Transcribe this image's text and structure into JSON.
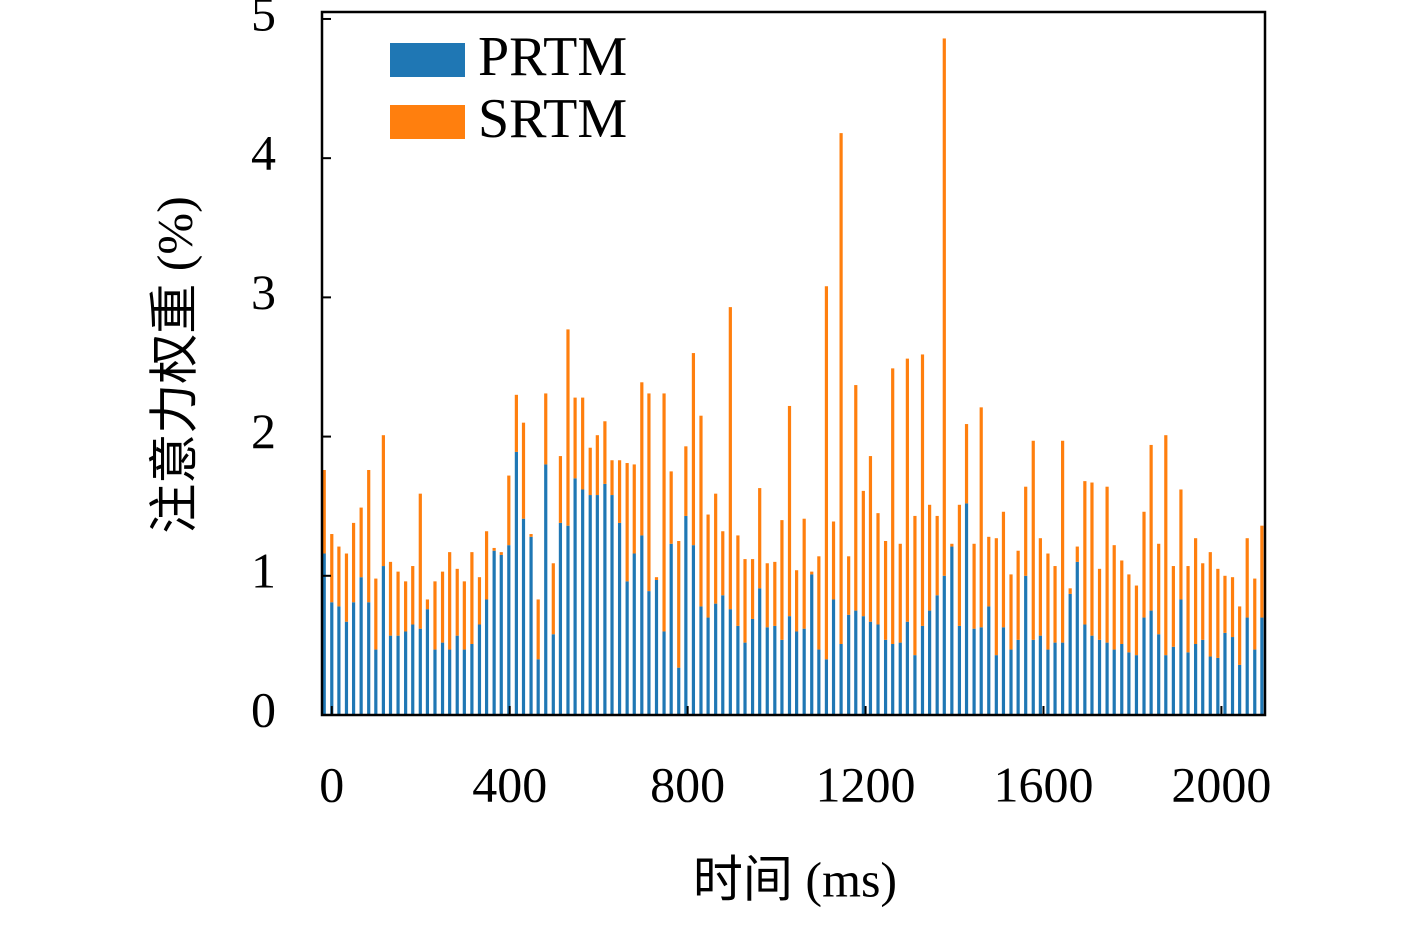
{
  "chart_data": {
    "type": "stacked_bar",
    "xlabel": "时间 (ms)",
    "ylabel": "注意力权重 (%)",
    "x": [
      -17,
      0,
      16,
      33,
      49,
      66,
      83,
      99,
      116,
      132,
      149,
      166,
      182,
      199,
      215,
      232,
      249,
      265,
      282,
      298,
      315,
      332,
      348,
      365,
      381,
      398,
      415,
      431,
      448,
      464,
      481,
      498,
      514,
      531,
      547,
      564,
      581,
      597,
      614,
      630,
      647,
      664,
      680,
      697,
      713,
      730,
      747,
      763,
      780,
      796,
      813,
      830,
      846,
      863,
      879,
      896,
      913,
      929,
      946,
      962,
      979,
      996,
      1012,
      1029,
      1045,
      1062,
      1079,
      1095,
      1112,
      1128,
      1145,
      1162,
      1178,
      1195,
      1211,
      1228,
      1245,
      1261,
      1278,
      1294,
      1311,
      1328,
      1344,
      1361,
      1377,
      1394,
      1411,
      1427,
      1444,
      1460,
      1477,
      1494,
      1510,
      1527,
      1543,
      1560,
      1577,
      1593,
      1610,
      1626,
      1643,
      1660,
      1676,
      1693,
      1709,
      1726,
      1743,
      1759,
      1776,
      1792,
      1809,
      1826,
      1842,
      1859,
      1875,
      1892,
      1909,
      1925,
      1942,
      1958,
      1975,
      1992,
      2008,
      2025,
      2041,
      2058,
      2075,
      2091
    ],
    "series": [
      {
        "name": "PRTM",
        "color": "#1f77b4",
        "values": [
          1.16,
          0.81,
          0.78,
          0.67,
          0.81,
          0.99,
          0.81,
          0.47,
          1.07,
          0.57,
          0.57,
          0.6,
          0.65,
          0.62,
          0.76,
          0.47,
          0.52,
          0.47,
          0.57,
          0.47,
          0.51,
          0.65,
          0.83,
          1.18,
          1.15,
          1.22,
          1.89,
          1.41,
          1.28,
          0.4,
          1.8,
          0.58,
          1.38,
          1.36,
          1.7,
          1.62,
          1.58,
          1.58,
          1.66,
          1.58,
          1.38,
          0.96,
          1.16,
          1.29,
          0.89,
          0.97,
          0.6,
          1.23,
          0.34,
          1.43,
          1.22,
          0.78,
          0.7,
          0.8,
          0.86,
          0.76,
          0.64,
          0.52,
          0.69,
          0.91,
          0.63,
          0.64,
          0.54,
          0.71,
          0.6,
          0.62,
          1.01,
          0.47,
          0.4,
          0.83,
          0.51,
          0.72,
          0.75,
          0.71,
          0.67,
          0.65,
          0.54,
          0.51,
          0.52,
          0.67,
          0.43,
          0.64,
          0.75,
          0.86,
          1.0,
          1.21,
          0.64,
          1.52,
          0.62,
          0.63,
          0.78,
          0.43,
          0.63,
          0.47,
          0.54,
          1.0,
          0.54,
          0.57,
          0.47,
          0.52,
          0.52,
          0.87,
          1.1,
          0.65,
          0.57,
          0.54,
          0.52,
          0.47,
          0.51,
          0.45,
          0.43,
          0.7,
          0.75,
          0.58,
          0.43,
          0.49,
          0.83,
          0.45,
          0.51,
          0.54,
          0.42,
          0.41,
          0.59,
          0.56,
          0.36,
          0.7,
          0.47,
          0.7
        ]
      },
      {
        "name": "SRTM",
        "color": "#ff7f0e",
        "values": [
          0.6,
          0.49,
          0.43,
          0.49,
          0.57,
          0.5,
          0.95,
          0.51,
          0.94,
          0.53,
          0.46,
          0.36,
          0.42,
          0.97,
          0.07,
          0.49,
          0.51,
          0.7,
          0.48,
          0.49,
          0.66,
          0.34,
          0.49,
          0.02,
          0.02,
          0.5,
          0.41,
          0.69,
          0.02,
          0.43,
          0.51,
          0.51,
          0.48,
          1.41,
          0.58,
          0.66,
          0.34,
          0.43,
          0.45,
          0.25,
          0.45,
          0.85,
          0.64,
          1.1,
          1.42,
          0.02,
          1.71,
          0.52,
          0.91,
          0.5,
          1.38,
          1.37,
          0.74,
          0.79,
          0.46,
          2.17,
          0.65,
          0.6,
          0.43,
          0.72,
          0.46,
          0.46,
          0.86,
          1.51,
          0.44,
          0.79,
          0.02,
          0.67,
          2.68,
          0.56,
          3.67,
          0.42,
          1.62,
          0.9,
          1.19,
          0.8,
          0.71,
          1.98,
          0.71,
          1.89,
          1.0,
          1.95,
          0.76,
          0.57,
          3.86,
          0.02,
          0.87,
          0.57,
          0.61,
          1.58,
          0.5,
          0.84,
          0.83,
          0.54,
          0.64,
          0.64,
          1.43,
          0.7,
          0.69,
          0.55,
          1.45,
          0.04,
          0.11,
          1.03,
          1.1,
          0.51,
          1.12,
          0.75,
          0.6,
          0.56,
          0.5,
          0.76,
          1.19,
          0.65,
          1.58,
          0.58,
          0.79,
          0.62,
          0.76,
          0.55,
          0.75,
          0.64,
          0.41,
          0.43,
          0.42,
          0.57,
          0.51,
          0.66
        ]
      }
    ],
    "xlim": [
      -22,
      2098
    ],
    "xticks": [
      0,
      400,
      800,
      1200,
      1600,
      2000
    ],
    "ylim": [
      0,
      5.05
    ],
    "yticks": [
      0,
      1,
      2,
      3,
      4,
      5
    ],
    "legend": "upper left"
  }
}
